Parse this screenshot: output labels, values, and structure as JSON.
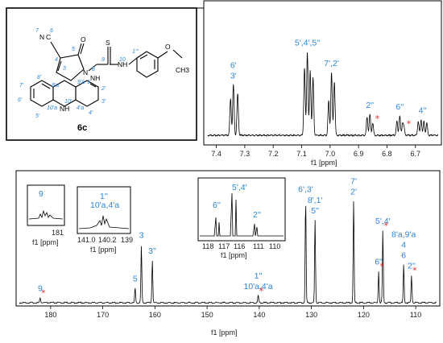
{
  "compound_label": "6c",
  "structure": {
    "atoms": [
      "N",
      "C",
      "O",
      "N",
      "NH",
      "S",
      "NH",
      "O",
      "CH3",
      "NH",
      "N"
    ],
    "numbers": [
      "7",
      "6",
      "5",
      "4",
      "3",
      "9",
      "8",
      "10",
      "1'''",
      "8'",
      "8'a",
      "9'a",
      "1'",
      "2'",
      "3'",
      "4'",
      "4'a",
      "10'",
      "10'a",
      "7'",
      "6'",
      "5'"
    ]
  },
  "chart_data": [
    {
      "type": "line",
      "name": "1H NMR",
      "xlabel": "f1 [ppm]",
      "xlim": [
        7.43,
        6.62
      ],
      "ticks": [
        "7.4",
        "7.3",
        "7.2",
        "7.1",
        "7.0",
        "6.9",
        "6.8",
        "6.7"
      ],
      "tick_values": [
        7.4,
        7.3,
        7.2,
        7.1,
        7.0,
        6.9,
        6.8,
        6.7
      ],
      "peaks": [
        {
          "x": 7.35,
          "h": 0.42
        },
        {
          "x": 7.34,
          "h": 0.58
        },
        {
          "x": 7.325,
          "h": 0.48
        },
        {
          "x": 7.09,
          "h": 0.78
        },
        {
          "x": 7.08,
          "h": 0.96
        },
        {
          "x": 7.07,
          "h": 0.74
        },
        {
          "x": 7.06,
          "h": 0.66
        },
        {
          "x": 7.005,
          "h": 0.4
        },
        {
          "x": 6.995,
          "h": 0.72
        },
        {
          "x": 6.985,
          "h": 0.62
        },
        {
          "x": 6.87,
          "h": 0.2
        },
        {
          "x": 6.86,
          "h": 0.24
        },
        {
          "x": 6.85,
          "h": 0.14
        },
        {
          "x": 6.765,
          "h": 0.16
        },
        {
          "x": 6.755,
          "h": 0.22
        },
        {
          "x": 6.745,
          "h": 0.14
        },
        {
          "x": 6.74,
          "h": 0.08
        },
        {
          "x": 6.69,
          "h": 0.16
        },
        {
          "x": 6.68,
          "h": 0.18
        },
        {
          "x": 6.67,
          "h": 0.16
        },
        {
          "x": 6.66,
          "h": 0.14
        }
      ],
      "annotations": [
        {
          "x": 7.34,
          "lines": [
            "6'",
            "3'"
          ]
        },
        {
          "x": 7.08,
          "lines": [
            "5',4',5''"
          ]
        },
        {
          "x": 6.995,
          "lines": [
            "7',2'"
          ]
        },
        {
          "x": 6.86,
          "lines": [
            "2''"
          ]
        },
        {
          "x": 6.755,
          "lines": [
            "6''"
          ]
        },
        {
          "x": 6.675,
          "lines": [
            "4''"
          ]
        }
      ],
      "impurity_stars": [
        6.845,
        6.735
      ]
    },
    {
      "type": "line",
      "name": "13C NMR",
      "xlabel": "f1 [ppm]",
      "xlim": [
        186,
        106
      ],
      "ticks": [
        "180",
        "170",
        "160",
        "150",
        "140",
        "130",
        "120",
        "110"
      ],
      "tick_values": [
        180,
        170,
        160,
        150,
        140,
        130,
        120,
        110
      ],
      "peaks": [
        {
          "x": 182.0,
          "h": 0.05
        },
        {
          "x": 163.8,
          "h": 0.14
        },
        {
          "x": 162.6,
          "h": 0.55
        },
        {
          "x": 160.5,
          "h": 0.4
        },
        {
          "x": 140.2,
          "h": 0.07
        },
        {
          "x": 131.1,
          "h": 0.98
        },
        {
          "x": 129.3,
          "h": 0.78
        },
        {
          "x": 121.9,
          "h": 0.96
        },
        {
          "x": 117.1,
          "h": 0.3
        },
        {
          "x": 116.3,
          "h": 0.68
        },
        {
          "x": 112.3,
          "h": 0.36
        },
        {
          "x": 110.8,
          "h": 0.26
        }
      ],
      "annotations": [
        {
          "x": 182.0,
          "lines": [
            "9"
          ]
        },
        {
          "x": 163.8,
          "lines": [
            "5"
          ]
        },
        {
          "x": 162.6,
          "lines": [
            "3"
          ]
        },
        {
          "x": 160.5,
          "lines": [
            "3''"
          ]
        },
        {
          "x": 140.2,
          "lines": [
            "1''",
            "10'a,4'a"
          ]
        },
        {
          "x": 131.1,
          "lines": [
            "6',3'"
          ]
        },
        {
          "x": 129.3,
          "lines": [
            "8',1'",
            "5''"
          ]
        },
        {
          "x": 121.9,
          "lines": [
            "7'",
            "2'"
          ]
        },
        {
          "x": 117.1,
          "lines": [
            "6''"
          ]
        },
        {
          "x": 116.3,
          "lines": [
            "5',4'"
          ]
        },
        {
          "x": 112.3,
          "lines": [
            "8'a,9'a",
            "4",
            "6"
          ]
        },
        {
          "x": 110.8,
          "lines": [
            "2''"
          ]
        }
      ],
      "impurity_stars": [
        182.0,
        140.2,
        117.1,
        116.3,
        110.8
      ],
      "insets": [
        {
          "label": "9",
          "xlabel": "f1 [ppm]",
          "ticks": [
            "181"
          ]
        },
        {
          "label": "1'' 10'a,4'a",
          "xlabel": "f1 [ppm]",
          "ticks": [
            "141.0",
            "140.2",
            "139"
          ]
        },
        {
          "label": "6'' 5',4' 2''",
          "xlabel": "f1 [ppm]",
          "ticks": [
            "118",
            "117",
            "116",
            "111",
            "110"
          ]
        }
      ]
    }
  ]
}
